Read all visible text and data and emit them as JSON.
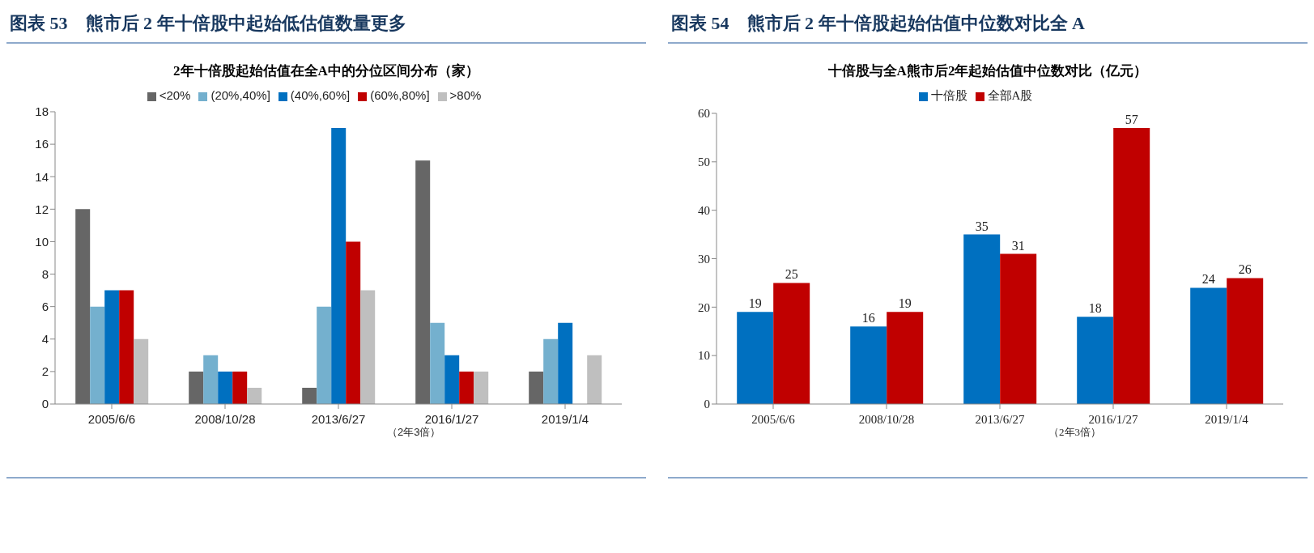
{
  "chart_data": [
    {
      "type": "bar",
      "title": "图表 53　熊市后 2 年十倍股中起始低估值数量更多",
      "subtitle": "2年十倍股起始估值在全A中的分位区间分布（家）",
      "categories": [
        "2005/6/6",
        "2008/10/28",
        "2013/6/27",
        "2016/1/27",
        "2019/1/4"
      ],
      "series": [
        {
          "name": "<20%",
          "color": "#666666",
          "values": [
            12,
            2,
            1,
            15,
            2
          ]
        },
        {
          "name": "(20%,40%]",
          "color": "#74b0ce",
          "values": [
            6,
            3,
            6,
            5,
            4
          ]
        },
        {
          "name": "(40%,60%]",
          "color": "#0070c0",
          "values": [
            7,
            2,
            17,
            3,
            5
          ]
        },
        {
          "name": "(60%,80%]",
          "color": "#c00000",
          "values": [
            7,
            2,
            10,
            2,
            0
          ]
        },
        {
          "name": ">80%",
          "color": "#bfbfbf",
          "values": [
            4,
            1,
            7,
            2,
            3
          ]
        }
      ],
      "ylim": [
        0,
        18
      ],
      "yticks": [
        0,
        2,
        4,
        6,
        8,
        10,
        12,
        14,
        16,
        18
      ],
      "grid": false,
      "legend": "top",
      "annotations": [
        "（2年3倍）"
      ]
    },
    {
      "type": "bar",
      "title": "图表 54　熊市后 2 年十倍股起始估值中位数对比全 A",
      "subtitle": "十倍股与全A熊市后2年起始估值中位数对比（亿元）",
      "categories": [
        "2005/6/6",
        "2008/10/28",
        "2013/6/27",
        "2016/1/27",
        "2019/1/4"
      ],
      "series": [
        {
          "name": "十倍股",
          "color": "#0070c0",
          "values": [
            19,
            16,
            35,
            18,
            24
          ]
        },
        {
          "name": "全部A股",
          "color": "#c00000",
          "values": [
            25,
            19,
            31,
            57,
            26
          ]
        }
      ],
      "ylim": [
        0,
        60
      ],
      "yticks": [
        0,
        10,
        20,
        30,
        40,
        50,
        60
      ],
      "grid": false,
      "legend": "top",
      "data_labels": true,
      "annotations": [
        "（2年3倍）"
      ]
    }
  ]
}
